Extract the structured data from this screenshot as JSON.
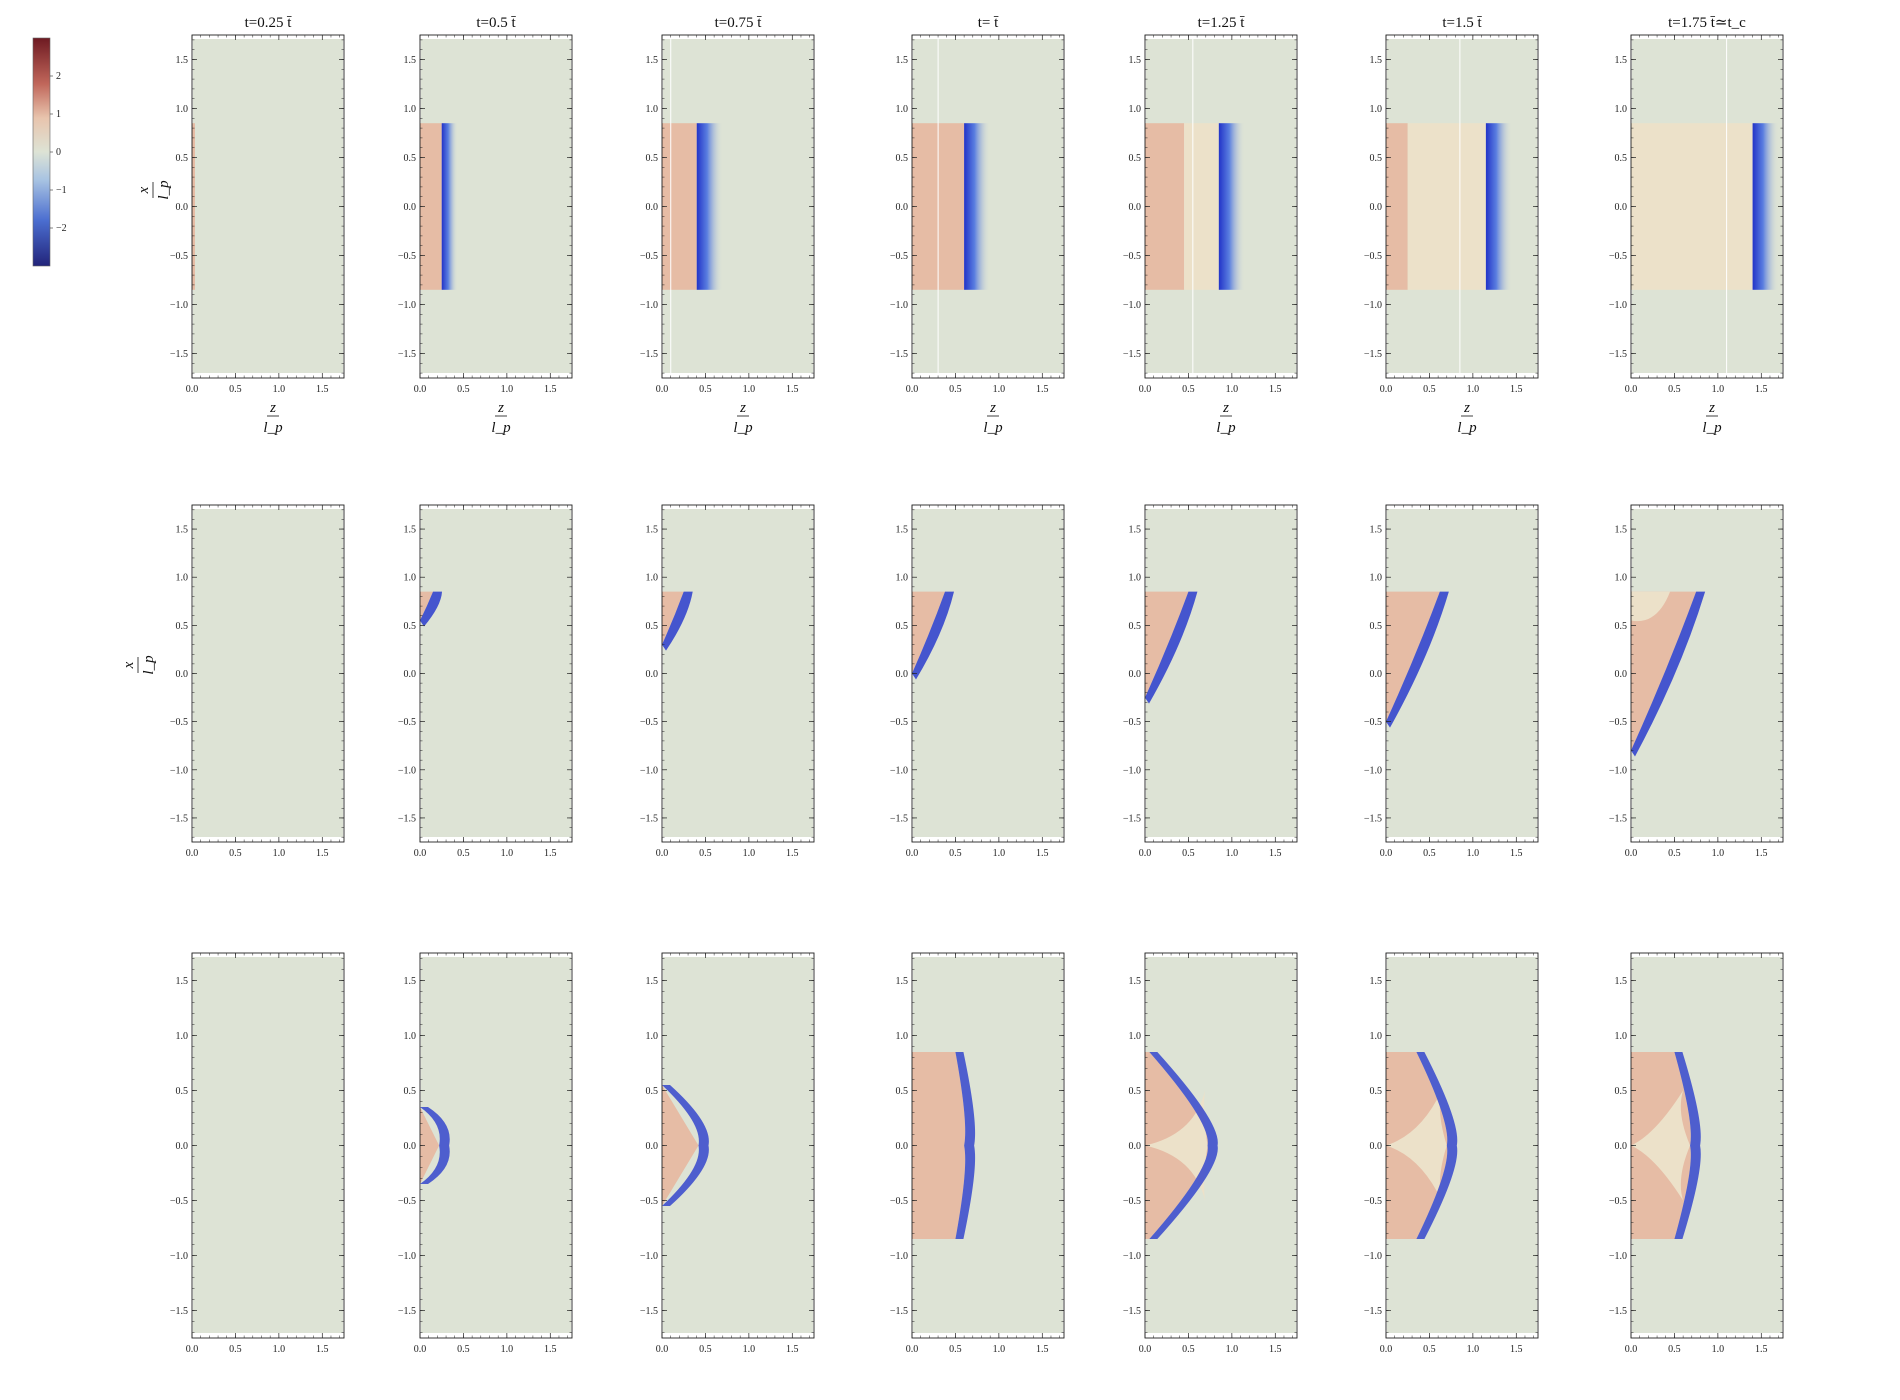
{
  "figure": {
    "titles": [
      "t=0.25 t̄",
      "t=0.5 t̄",
      "t=0.75 t̄",
      "t= t̄",
      "t=1.25 t̄",
      "t=1.5 t̄",
      "t=1.75 t̄≃t_c"
    ],
    "x_ticks": [
      "0.0",
      "0.5",
      "1.0",
      "1.5"
    ],
    "y_ticks": [
      "1.5",
      "1.0",
      "0.5",
      "0.0",
      "−0.5",
      "−1.0",
      "−1.5"
    ],
    "x_label": {
      "num": "z",
      "den": "l_p"
    },
    "y_label": {
      "num": "x",
      "den": "l_p"
    },
    "colorbar": {
      "ticks": [
        "2",
        "1",
        "0",
        "−1",
        "−2"
      ],
      "range": [
        -3,
        3
      ]
    },
    "colors": {
      "background": "#dde3d5",
      "region_high": "#e6bca5",
      "region_mid": "#ece1c9",
      "front_blue": "#2a3ccc",
      "colorbar_top": "#6e1a22",
      "colorbar_bottom": "#22247a"
    },
    "domain": {
      "z": [
        0,
        1.75
      ],
      "x": [
        -1.75,
        1.75
      ]
    },
    "row1_fronts_z": [
      0.0,
      0.25,
      0.4,
      0.6,
      0.85,
      1.15,
      1.4
    ],
    "row1_mid_z": [
      null,
      null,
      null,
      null,
      0.45,
      0.25,
      0.0
    ],
    "row2_tip_z": [
      0.0,
      0.15,
      0.25,
      0.38,
      0.5,
      0.62,
      0.75
    ],
    "row2_tip_x_bottom": [
      0.85,
      0.55,
      0.3,
      0.0,
      -0.25,
      -0.5,
      -0.8
    ],
    "row3_tip_z": [
      0.0,
      0.22,
      0.42,
      0.6,
      0.72,
      0.7,
      0.68
    ],
    "row3_half_height": [
      0.0,
      0.35,
      0.55,
      0.85,
      0.85,
      0.85,
      0.85
    ]
  }
}
